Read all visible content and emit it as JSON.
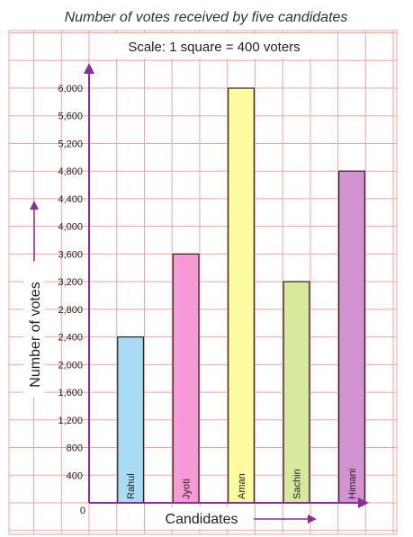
{
  "chart_data": {
    "type": "bar",
    "title": "Number of votes received by five candidates",
    "subtitle": "Scale: 1 square = 400 voters",
    "xlabel": "Candidates",
    "ylabel": "Number of votes",
    "categories": [
      "Rahul",
      "Jyoti",
      "Aman",
      "Sachin",
      "Himani"
    ],
    "values": [
      2400,
      3600,
      6000,
      3200,
      4800
    ],
    "bar_colors": [
      "#a8dcf5",
      "#f59ad4",
      "#fbfb9f",
      "#d6e99d",
      "#d393d3"
    ],
    "ylim": [
      0,
      6000
    ],
    "y_ticks": [
      0,
      400,
      800,
      1200,
      1600,
      2000,
      2400,
      2800,
      3200,
      3600,
      4000,
      4400,
      4800,
      5200,
      5600,
      6000
    ],
    "y_tick_labels": [
      "0",
      "400",
      "800",
      "1,200",
      "1,600",
      "2,000",
      "2,400",
      "2,800",
      "3,200",
      "3,600",
      "4,000",
      "4,400",
      "4,800",
      "5,200",
      "5,600",
      "6,000"
    ],
    "grid": true,
    "grid_color": "#f4a39a",
    "axis_color": "#8b2a9b"
  }
}
